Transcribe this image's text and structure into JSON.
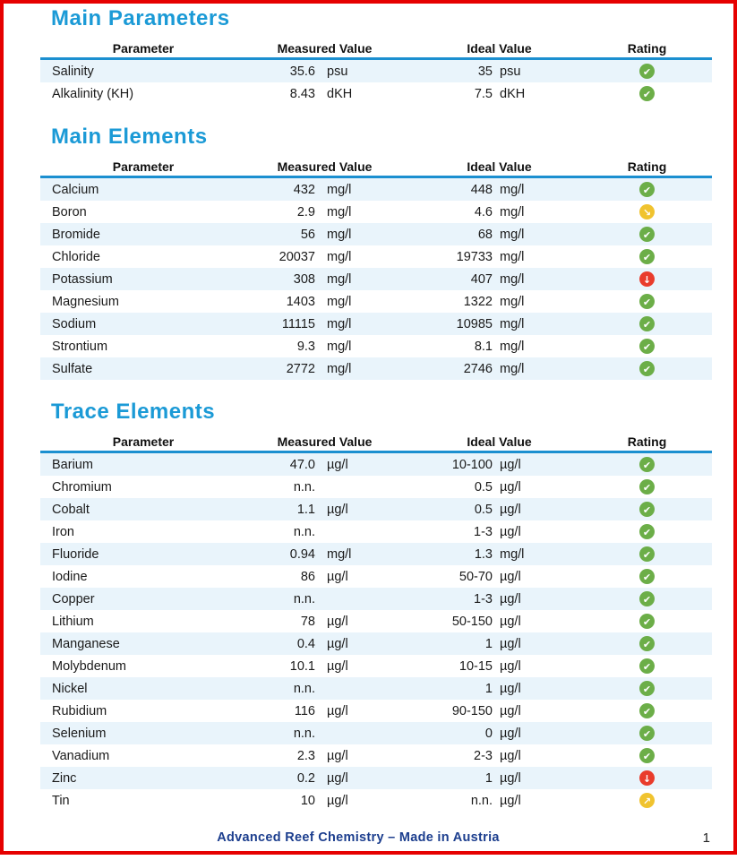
{
  "columns": [
    "Parameter",
    "Measured Value",
    "Ideal Value",
    "Rating"
  ],
  "colors": {
    "section_title_blue": "#1b9ad6",
    "header_rule_blue": "#1b8fd0",
    "row_stripe": "#e9f4fb",
    "rating_ok_green": "#6cae48",
    "rating_low_red": "#e93c2c",
    "rating_slight_yellow": "#f0c32f",
    "footer_navy": "#1c3e8e",
    "page_border_red": "#e60000"
  },
  "rating_glyphs": {
    "ok": "✔",
    "low": "↓",
    "slightly_low": "↘",
    "slightly_high": "↗"
  },
  "sections": [
    {
      "title": "Main Parameters",
      "rows": [
        {
          "parameter": "Salinity",
          "measured": "35.6",
          "measured_unit": "psu",
          "ideal": "35",
          "ideal_unit": "psu",
          "rating": "ok"
        },
        {
          "parameter": "Alkalinity (KH)",
          "measured": "8.43",
          "measured_unit": "dKH",
          "ideal": "7.5",
          "ideal_unit": "dKH",
          "rating": "ok"
        }
      ]
    },
    {
      "title": "Main Elements",
      "rows": [
        {
          "parameter": "Calcium",
          "measured": "432",
          "measured_unit": "mg/l",
          "ideal": "448",
          "ideal_unit": "mg/l",
          "rating": "ok"
        },
        {
          "parameter": "Boron",
          "measured": "2.9",
          "measured_unit": "mg/l",
          "ideal": "4.6",
          "ideal_unit": "mg/l",
          "rating": "slightly_low"
        },
        {
          "parameter": "Bromide",
          "measured": "56",
          "measured_unit": "mg/l",
          "ideal": "68",
          "ideal_unit": "mg/l",
          "rating": "ok"
        },
        {
          "parameter": "Chloride",
          "measured": "20037",
          "measured_unit": "mg/l",
          "ideal": "19733",
          "ideal_unit": "mg/l",
          "rating": "ok"
        },
        {
          "parameter": "Potassium",
          "measured": "308",
          "measured_unit": "mg/l",
          "ideal": "407",
          "ideal_unit": "mg/l",
          "rating": "low"
        },
        {
          "parameter": "Magnesium",
          "measured": "1403",
          "measured_unit": "mg/l",
          "ideal": "1322",
          "ideal_unit": "mg/l",
          "rating": "ok"
        },
        {
          "parameter": "Sodium",
          "measured": "11115",
          "measured_unit": "mg/l",
          "ideal": "10985",
          "ideal_unit": "mg/l",
          "rating": "ok"
        },
        {
          "parameter": "Strontium",
          "measured": "9.3",
          "measured_unit": "mg/l",
          "ideal": "8.1",
          "ideal_unit": "mg/l",
          "rating": "ok"
        },
        {
          "parameter": "Sulfate",
          "measured": "2772",
          "measured_unit": "mg/l",
          "ideal": "2746",
          "ideal_unit": "mg/l",
          "rating": "ok"
        }
      ]
    },
    {
      "title": "Trace Elements",
      "rows": [
        {
          "parameter": "Barium",
          "measured": "47.0",
          "measured_unit": "µg/l",
          "ideal": "10-100",
          "ideal_unit": "µg/l",
          "rating": "ok"
        },
        {
          "parameter": "Chromium",
          "measured": "n.n.",
          "measured_unit": "",
          "ideal": "0.5",
          "ideal_unit": "µg/l",
          "rating": "ok"
        },
        {
          "parameter": "Cobalt",
          "measured": "1.1",
          "measured_unit": "µg/l",
          "ideal": "0.5",
          "ideal_unit": "µg/l",
          "rating": "ok"
        },
        {
          "parameter": "Iron",
          "measured": "n.n.",
          "measured_unit": "",
          "ideal": "1-3",
          "ideal_unit": "µg/l",
          "rating": "ok"
        },
        {
          "parameter": "Fluoride",
          "measured": "0.94",
          "measured_unit": "mg/l",
          "ideal": "1.3",
          "ideal_unit": "mg/l",
          "rating": "ok"
        },
        {
          "parameter": "Iodine",
          "measured": "86",
          "measured_unit": "µg/l",
          "ideal": "50-70",
          "ideal_unit": "µg/l",
          "rating": "ok"
        },
        {
          "parameter": "Copper",
          "measured": "n.n.",
          "measured_unit": "",
          "ideal": "1-3",
          "ideal_unit": "µg/l",
          "rating": "ok"
        },
        {
          "parameter": "Lithium",
          "measured": "78",
          "measured_unit": "µg/l",
          "ideal": "50-150",
          "ideal_unit": "µg/l",
          "rating": "ok"
        },
        {
          "parameter": "Manganese",
          "measured": "0.4",
          "measured_unit": "µg/l",
          "ideal": "1",
          "ideal_unit": "µg/l",
          "rating": "ok"
        },
        {
          "parameter": "Molybdenum",
          "measured": "10.1",
          "measured_unit": "µg/l",
          "ideal": "10-15",
          "ideal_unit": "µg/l",
          "rating": "ok"
        },
        {
          "parameter": "Nickel",
          "measured": "n.n.",
          "measured_unit": "",
          "ideal": "1",
          "ideal_unit": "µg/l",
          "rating": "ok"
        },
        {
          "parameter": "Rubidium",
          "measured": "116",
          "measured_unit": "µg/l",
          "ideal": "90-150",
          "ideal_unit": "µg/l",
          "rating": "ok"
        },
        {
          "parameter": "Selenium",
          "measured": "n.n.",
          "measured_unit": "",
          "ideal": "0",
          "ideal_unit": "µg/l",
          "rating": "ok"
        },
        {
          "parameter": "Vanadium",
          "measured": "2.3",
          "measured_unit": "µg/l",
          "ideal": "2-3",
          "ideal_unit": "µg/l",
          "rating": "ok"
        },
        {
          "parameter": "Zinc",
          "measured": "0.2",
          "measured_unit": "µg/l",
          "ideal": "1",
          "ideal_unit": "µg/l",
          "rating": "low"
        },
        {
          "parameter": "Tin",
          "measured": "10",
          "measured_unit": "µg/l",
          "ideal": "n.n.",
          "ideal_unit": "µg/l",
          "rating": "slightly_high"
        }
      ]
    }
  ],
  "footer": {
    "text": "Advanced Reef Chemistry – Made in Austria",
    "page_number": "1"
  }
}
